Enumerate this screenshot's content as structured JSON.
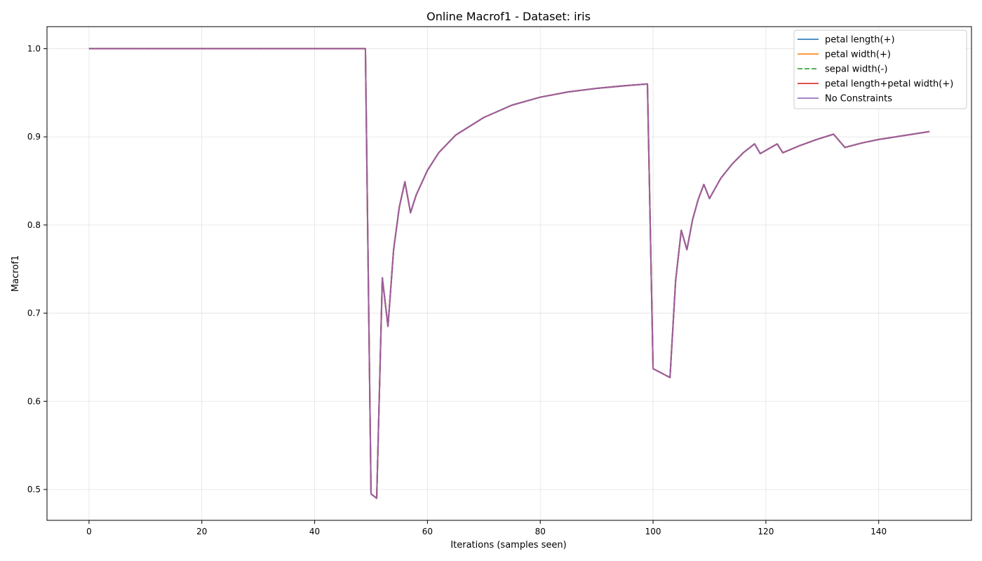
{
  "chart_data": {
    "type": "line",
    "title": "Online Macrof1 - Dataset: iris",
    "xlabel": "Iterations (samples seen)",
    "ylabel": "Macrof1",
    "xlim": [
      -7.45,
      156.45
    ],
    "ylim": [
      0.465,
      1.025
    ],
    "xticks": [
      0,
      20,
      40,
      60,
      80,
      100,
      120,
      140
    ],
    "yticks": [
      0.5,
      0.6,
      0.7,
      0.8,
      0.9,
      1.0
    ],
    "ytick_labels": [
      "0.5",
      "0.6",
      "0.7",
      "0.8",
      "0.9",
      "1.0"
    ],
    "grid": true,
    "legend_position": "top-right",
    "x": [
      0,
      49,
      50,
      51,
      52,
      53,
      54,
      55,
      56,
      57,
      58,
      60,
      62,
      65,
      70,
      75,
      80,
      85,
      90,
      95,
      99,
      100,
      103,
      104,
      105,
      106,
      107,
      108,
      109,
      110,
      112,
      114,
      116,
      118,
      119,
      122,
      123,
      126,
      129,
      132,
      134,
      137,
      140,
      143,
      146,
      149
    ],
    "series": [
      {
        "name": "petal length(+)",
        "color": "#1f77b4",
        "dash": "solid",
        "values": [
          1.0,
          1.0,
          0.495,
          0.49,
          0.74,
          0.685,
          0.772,
          0.82,
          0.849,
          0.814,
          0.834,
          0.862,
          0.882,
          0.902,
          0.922,
          0.936,
          0.945,
          0.951,
          0.955,
          0.958,
          0.96,
          0.637,
          0.627,
          0.737,
          0.794,
          0.772,
          0.806,
          0.829,
          0.846,
          0.83,
          0.853,
          0.869,
          0.882,
          0.892,
          0.881,
          0.892,
          0.882,
          0.89,
          0.897,
          0.903,
          0.888,
          0.893,
          0.897,
          0.9,
          0.903,
          0.906
        ]
      },
      {
        "name": "petal width(+)",
        "color": "#ff7f0e",
        "dash": "solid",
        "values": [
          1.0,
          1.0,
          0.495,
          0.49,
          0.74,
          0.685,
          0.772,
          0.82,
          0.849,
          0.814,
          0.834,
          0.862,
          0.882,
          0.902,
          0.922,
          0.936,
          0.945,
          0.951,
          0.955,
          0.958,
          0.96,
          0.637,
          0.627,
          0.737,
          0.794,
          0.772,
          0.806,
          0.829,
          0.846,
          0.83,
          0.853,
          0.869,
          0.882,
          0.892,
          0.881,
          0.892,
          0.882,
          0.89,
          0.897,
          0.903,
          0.888,
          0.893,
          0.897,
          0.9,
          0.903,
          0.906
        ]
      },
      {
        "name": "sepal width(-)",
        "color": "#2ca02c",
        "dash": "dashed",
        "values": [
          1.0,
          1.0,
          0.495,
          0.49,
          0.74,
          0.685,
          0.772,
          0.82,
          0.849,
          0.814,
          0.834,
          0.862,
          0.882,
          0.902,
          0.922,
          0.936,
          0.945,
          0.951,
          0.955,
          0.958,
          0.96,
          0.637,
          0.627,
          0.737,
          0.794,
          0.772,
          0.806,
          0.829,
          0.846,
          0.83,
          0.853,
          0.869,
          0.882,
          0.892,
          0.881,
          0.892,
          0.882,
          0.89,
          0.897,
          0.903,
          0.888,
          0.893,
          0.897,
          0.9,
          0.903,
          0.906
        ]
      },
      {
        "name": "petal length+petal width(+)",
        "color": "#d62728",
        "dash": "solid",
        "values": [
          1.0,
          1.0,
          0.495,
          0.49,
          0.74,
          0.685,
          0.772,
          0.82,
          0.849,
          0.814,
          0.834,
          0.862,
          0.882,
          0.902,
          0.922,
          0.936,
          0.945,
          0.951,
          0.955,
          0.958,
          0.96,
          0.637,
          0.627,
          0.737,
          0.794,
          0.772,
          0.806,
          0.829,
          0.846,
          0.83,
          0.853,
          0.869,
          0.882,
          0.892,
          0.881,
          0.892,
          0.882,
          0.89,
          0.897,
          0.903,
          0.888,
          0.893,
          0.897,
          0.9,
          0.903,
          0.906
        ]
      },
      {
        "name": "No Constraints",
        "color": "#9467bd",
        "dash": "solid",
        "values": [
          1.0,
          1.0,
          0.495,
          0.49,
          0.74,
          0.685,
          0.772,
          0.82,
          0.849,
          0.814,
          0.834,
          0.862,
          0.882,
          0.902,
          0.922,
          0.936,
          0.945,
          0.951,
          0.955,
          0.958,
          0.96,
          0.637,
          0.627,
          0.737,
          0.794,
          0.772,
          0.806,
          0.829,
          0.846,
          0.83,
          0.853,
          0.869,
          0.882,
          0.892,
          0.881,
          0.892,
          0.882,
          0.89,
          0.897,
          0.903,
          0.888,
          0.893,
          0.897,
          0.9,
          0.903,
          0.906
        ]
      }
    ]
  }
}
